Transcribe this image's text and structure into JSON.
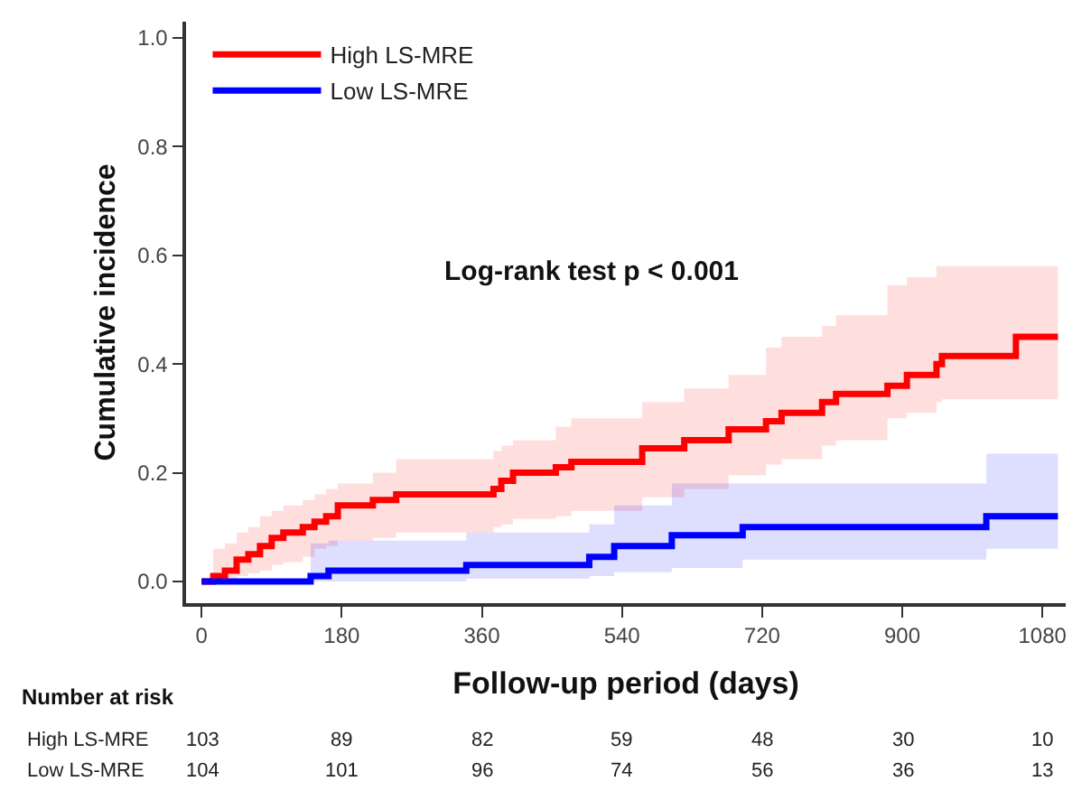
{
  "chart_data": {
    "type": "step",
    "xlabel": "Follow-up period (days)",
    "ylabel": "Cumulative incidence",
    "xlim": [
      -20,
      1110
    ],
    "xticks": [
      0,
      180,
      360,
      540,
      720,
      900,
      1080
    ],
    "ylim": [
      -0.04,
      1.03
    ],
    "yticks": [
      {
        "value": 0,
        "label": "0.0"
      },
      {
        "value": 0.2,
        "label": "0.2"
      },
      {
        "value": 0.4,
        "label": "0.4"
      },
      {
        "value": 0.6,
        "label": "0.6"
      },
      {
        "value": 0.8,
        "label": "0.8"
      },
      {
        "value": 1,
        "label": "1.0"
      }
    ],
    "legend": "top left",
    "marker": "none",
    "line_style": "solid",
    "series": [
      {
        "name": "High LS-MRE",
        "color": "#ff0000",
        "x": [
          0,
          15,
          30,
          45,
          60,
          75,
          90,
          105,
          130,
          145,
          160,
          175,
          220,
          250,
          375,
          385,
          400,
          455,
          475,
          566,
          620,
          677,
          725,
          745,
          797,
          815,
          881,
          906,
          944,
          951,
          1046,
          1100
        ],
        "values": [
          0,
          0.01,
          0.02,
          0.04,
          0.05,
          0.065,
          0.08,
          0.09,
          0.1,
          0.11,
          0.12,
          0.14,
          0.15,
          0.16,
          0.17,
          0.185,
          0.2,
          0.21,
          0.22,
          0.245,
          0.26,
          0.28,
          0.295,
          0.31,
          0.33,
          0.345,
          0.36,
          0.38,
          0.4,
          0.415,
          0.45,
          0.45
        ],
        "lower": [
          0,
          0,
          0,
          0.01,
          0.015,
          0.02,
          0.03,
          0.035,
          0.045,
          0.06,
          0.065,
          0.075,
          0.08,
          0.09,
          0.1,
          0.105,
          0.115,
          0.12,
          0.13,
          0.155,
          0.17,
          0.195,
          0.215,
          0.225,
          0.25,
          0.26,
          0.3,
          0.31,
          0.33,
          0.335,
          0.335,
          0.335
        ],
        "upper": [
          0,
          0.06,
          0.07,
          0.09,
          0.1,
          0.12,
          0.13,
          0.14,
          0.15,
          0.16,
          0.17,
          0.18,
          0.2,
          0.225,
          0.24,
          0.25,
          0.26,
          0.285,
          0.3,
          0.33,
          0.355,
          0.38,
          0.43,
          0.45,
          0.47,
          0.49,
          0.545,
          0.56,
          0.58,
          0.58,
          0.58,
          0.58
        ]
      },
      {
        "name": "Low LS-MRE",
        "color": "#0000ff",
        "x": [
          0,
          140,
          163,
          340,
          498,
          530,
          604,
          695,
          1008,
          1100
        ],
        "values": [
          0,
          0.01,
          0.02,
          0.03,
          0.045,
          0.065,
          0.085,
          0.1,
          0.12,
          0.12
        ],
        "lower": [
          0,
          0,
          0,
          0.005,
          0.01,
          0.017,
          0.025,
          0.04,
          0.06,
          0.06
        ],
        "upper": [
          0,
          0.07,
          0.075,
          0.09,
          0.105,
          0.14,
          0.18,
          0.18,
          0.235,
          0.235
        ]
      }
    ],
    "annotations": [
      "Log-rank test p < 0.001",
      "Number at risk",
      "High LS-MRE",
      "103",
      "89",
      "82",
      "59",
      "48",
      "30",
      "10",
      "Low LS-MRE",
      "104",
      "101",
      "96",
      "74",
      "56",
      "36",
      "13"
    ]
  }
}
